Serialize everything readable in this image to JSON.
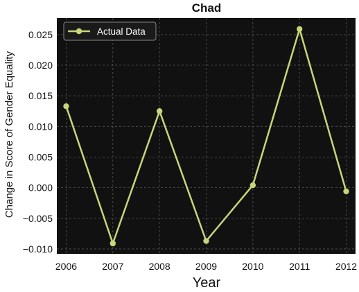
{
  "chart_data": {
    "type": "line",
    "title": "Chad",
    "xlabel": "Year",
    "ylabel": "Change in Score of Gender Equality",
    "x": [
      2006,
      2007,
      2008,
      2009,
      2010,
      2011,
      2012
    ],
    "series": [
      {
        "name": "Actual Data",
        "values": [
          0.0133,
          -0.0091,
          0.0125,
          -0.0087,
          0.0004,
          0.0259,
          -0.0006
        ],
        "color": "#c8d67a"
      }
    ],
    "xticks": [
      "2006",
      "2007",
      "2008",
      "2009",
      "2010",
      "2011",
      "2012"
    ],
    "yticks": [
      "−0.010",
      "−0.005",
      "0.000",
      "0.005",
      "0.010",
      "0.015",
      "0.020",
      "0.025"
    ],
    "ytick_values": [
      -0.01,
      -0.005,
      0.0,
      0.005,
      0.01,
      0.015,
      0.02,
      0.025
    ],
    "xlim": [
      2005.8,
      2012.2
    ],
    "ylim": [
      -0.0108,
      0.0277
    ],
    "grid": true,
    "legend_position": "top-left",
    "background": "#111111",
    "grid_color": "#555555"
  }
}
